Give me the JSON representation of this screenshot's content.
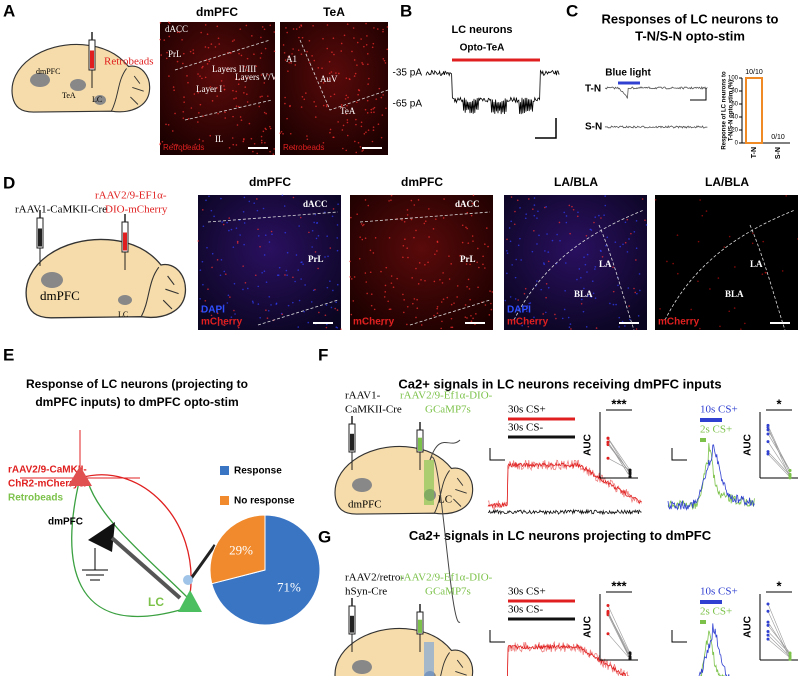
{
  "panel_a": {
    "label": "A",
    "retrobeads": "Retrobeads",
    "regions": [
      "dmPFC",
      "TeA",
      "LC"
    ],
    "images": [
      {
        "title": "dmPFC",
        "labels": [
          "dACC",
          "PrL",
          "Layers V/VI",
          "Layers II/III",
          "Layer I",
          "IL"
        ],
        "stain": "Retrobeads"
      },
      {
        "title": "TeA",
        "labels": [
          "A1",
          "AuV",
          "TeA"
        ],
        "stain": "Retrobeads"
      }
    ]
  },
  "panel_b": {
    "label": "B",
    "title": "LC neurons",
    "stim": "Opto-TeA",
    "levels": [
      "-35 pA",
      "-65 pA"
    ]
  },
  "panel_c": {
    "label": "C",
    "title": [
      "Responses of LC neurons to",
      "T-N/S-N opto-stim"
    ],
    "stim": "Blue light",
    "traces": [
      "T-N",
      "S-N"
    ],
    "chart": {
      "type": "bar",
      "ylabel": [
        "Response of LC neurons to",
        "T-N/S-N opto stim (%)"
      ],
      "categories": [
        "T-N",
        "S-N"
      ],
      "values": [
        100,
        0
      ],
      "value_labels": [
        "10/10",
        "0/10"
      ],
      "color": "#f08a24",
      "ylim": [
        0,
        100
      ],
      "yticks": [
        0,
        20,
        40,
        60,
        80,
        100
      ]
    }
  },
  "panel_d": {
    "label": "D",
    "virus1": "rAAV1-CaMKII-Cre",
    "virus2": [
      "rAAV2/9-EF1α-",
      "DIO-mCherry"
    ],
    "regions": [
      "dmPFC",
      "LC"
    ],
    "images": [
      {
        "title": "dmPFC",
        "labels": [
          "dACC",
          "PrL"
        ],
        "stains": [
          "DAPI",
          "mCherry"
        ]
      },
      {
        "title": "dmPFC",
        "labels": [
          "dACC",
          "PrL"
        ],
        "stains": [
          "mCherry"
        ]
      },
      {
        "title": "LA/BLA",
        "labels": [
          "LA",
          "BLA"
        ],
        "stains": [
          "DAPI",
          "mCherry"
        ]
      },
      {
        "title": "LA/BLA",
        "labels": [
          "LA",
          "BLA"
        ],
        "stains": [
          "mCherry"
        ]
      }
    ]
  },
  "panel_e": {
    "label": "E",
    "title": [
      "Response of LC neurons (projecting to",
      "dmPFC inputs) to dmPFC opto-stim"
    ],
    "virus": [
      "rAAV2/9-CaMKII-",
      "ChR2-mCherry&"
    ],
    "tracer": "Retrobeads",
    "regions": [
      "dmPFC",
      "LC"
    ],
    "chart": {
      "type": "pie",
      "categories": [
        "Response",
        "No response"
      ],
      "values": [
        71,
        29
      ],
      "value_labels": [
        "71%",
        "29%"
      ],
      "colors": [
        "#3a75c4",
        "#f08a2c"
      ]
    }
  },
  "panel_f": {
    "label": "F",
    "title": "Ca2+ signals in LC neurons receiving dmPFC inputs",
    "virus1": [
      "rAAV1-",
      "CaMKII-Cre"
    ],
    "virus2": [
      "rAAV2/9-Ef1α-DIO-",
      "GCaMP7s"
    ],
    "regions": [
      "dmPFC",
      "LC"
    ],
    "long": {
      "cs_plus": "30s CS+",
      "cs_minus": "30s CS-",
      "sig": "***",
      "ylabel": "AUC"
    },
    "short": {
      "cs_plus": "10s CS+",
      "cs_minus": "2s CS+",
      "sig": "*",
      "ylabel": "AUC"
    }
  },
  "panel_g": {
    "label": "G",
    "title": "Ca2+ signals in LC neurons projecting to dmPFC",
    "virus1": [
      "rAAV2/retro-",
      "hSyn-Cre"
    ],
    "virus2": [
      "rAAV2/9-Ef1α-DIO-",
      "GCaMP7s"
    ],
    "regions": [
      "dmPFC",
      "LC"
    ],
    "long": {
      "cs_plus": "30s CS+",
      "cs_minus": "30s CS-",
      "sig": "***",
      "ylabel": "AUC"
    },
    "short": {
      "cs_plus": "10s CS+",
      "cs_minus": "2s CS+",
      "sig": "*",
      "ylabel": "AUC"
    }
  }
}
